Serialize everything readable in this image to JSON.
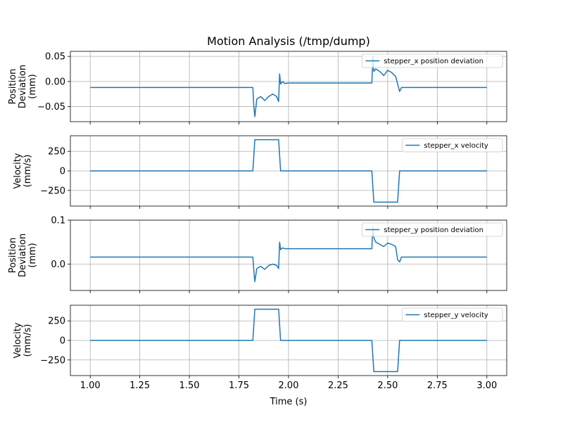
{
  "figure": {
    "title": "Motion Analysis (/tmp/dump)",
    "xlabel": "Time (s)",
    "line_color": "#1f77b4"
  },
  "chart_data": [
    {
      "type": "line",
      "ylabel_lines": [
        "Position",
        "Deviation",
        "(mm)"
      ],
      "xlim": [
        0.9,
        3.1
      ],
      "ylim": [
        -0.08,
        0.06
      ],
      "yticks": [
        -0.05,
        0.0,
        0.05
      ],
      "ytick_labels": [
        "−0.05",
        "0.00",
        "0.05"
      ],
      "grid": true,
      "legend_placement": "top-right",
      "series": [
        {
          "name": "stepper_x position deviation",
          "x": [
            1.0,
            1.82,
            1.825,
            1.83,
            1.84,
            1.86,
            1.88,
            1.9,
            1.92,
            1.94,
            1.95,
            1.955,
            1.96,
            1.97,
            1.98,
            2.0,
            2.1,
            2.2,
            2.3,
            2.42,
            2.425,
            2.43,
            2.44,
            2.46,
            2.48,
            2.5,
            2.52,
            2.54,
            2.55,
            2.56,
            2.57,
            2.6,
            3.0
          ],
          "y": [
            -0.012,
            -0.012,
            -0.05,
            -0.07,
            -0.035,
            -0.03,
            -0.038,
            -0.03,
            -0.025,
            -0.03,
            -0.04,
            0.015,
            -0.005,
            0.0,
            -0.004,
            -0.003,
            -0.003,
            -0.003,
            -0.003,
            -0.003,
            0.05,
            0.02,
            0.025,
            0.02,
            0.012,
            0.022,
            0.018,
            0.01,
            -0.005,
            -0.02,
            -0.012,
            -0.012,
            -0.012
          ]
        }
      ]
    },
    {
      "type": "line",
      "ylabel_lines": [
        "Velocity",
        "(mm/s)"
      ],
      "xlim": [
        0.9,
        3.1
      ],
      "ylim": [
        -450,
        450
      ],
      "yticks": [
        -250,
        0,
        250
      ],
      "ytick_labels": [
        "−250",
        "0",
        "250"
      ],
      "grid": true,
      "legend_placement": "top-right",
      "series": [
        {
          "name": "stepper_x velocity",
          "x": [
            1.0,
            1.82,
            1.83,
            1.95,
            1.96,
            2.42,
            2.43,
            2.55,
            2.56,
            3.0
          ],
          "y": [
            0,
            0,
            400,
            400,
            0,
            0,
            -400,
            -400,
            0,
            0
          ]
        }
      ]
    },
    {
      "type": "line",
      "ylabel_lines": [
        "Position",
        "Deviation",
        "(mm)"
      ],
      "xlim": [
        0.9,
        3.1
      ],
      "ylim": [
        -0.06,
        0.1
      ],
      "yticks": [
        0.0,
        0.1
      ],
      "ytick_labels": [
        "0.0",
        "0.1"
      ],
      "grid": true,
      "legend_placement": "top-right",
      "series": [
        {
          "name": "stepper_y position deviation",
          "x": [
            1.0,
            1.82,
            1.825,
            1.83,
            1.84,
            1.86,
            1.88,
            1.9,
            1.92,
            1.94,
            1.95,
            1.955,
            1.96,
            1.97,
            1.98,
            2.0,
            2.1,
            2.2,
            2.3,
            2.42,
            2.425,
            2.43,
            2.44,
            2.46,
            2.48,
            2.5,
            2.52,
            2.54,
            2.55,
            2.56,
            2.57,
            2.6,
            3.0
          ],
          "y": [
            0.016,
            0.016,
            -0.015,
            -0.04,
            -0.01,
            -0.005,
            -0.012,
            -0.003,
            0.0,
            -0.003,
            -0.01,
            0.05,
            0.033,
            0.037,
            0.035,
            0.035,
            0.035,
            0.035,
            0.035,
            0.035,
            0.085,
            0.06,
            0.05,
            0.045,
            0.04,
            0.048,
            0.045,
            0.04,
            0.01,
            0.005,
            0.016,
            0.016,
            0.016
          ]
        }
      ]
    },
    {
      "type": "line",
      "ylabel_lines": [
        "Velocity",
        "(mm/s)"
      ],
      "xlim": [
        0.9,
        3.1
      ],
      "ylim": [
        -450,
        450
      ],
      "yticks": [
        -250,
        0,
        250
      ],
      "ytick_labels": [
        "−250",
        "0",
        "250"
      ],
      "xticks": [
        1.0,
        1.25,
        1.5,
        1.75,
        2.0,
        2.25,
        2.5,
        2.75,
        3.0
      ],
      "xtick_labels": [
        "1.00",
        "1.25",
        "1.50",
        "1.75",
        "2.00",
        "2.25",
        "2.50",
        "2.75",
        "3.00"
      ],
      "grid": true,
      "legend_placement": "top-right",
      "series": [
        {
          "name": "stepper_y velocity",
          "x": [
            1.0,
            1.82,
            1.83,
            1.95,
            1.96,
            2.42,
            2.43,
            2.55,
            2.56,
            3.0
          ],
          "y": [
            0,
            0,
            400,
            400,
            0,
            0,
            -400,
            -400,
            0,
            0
          ]
        }
      ]
    }
  ]
}
